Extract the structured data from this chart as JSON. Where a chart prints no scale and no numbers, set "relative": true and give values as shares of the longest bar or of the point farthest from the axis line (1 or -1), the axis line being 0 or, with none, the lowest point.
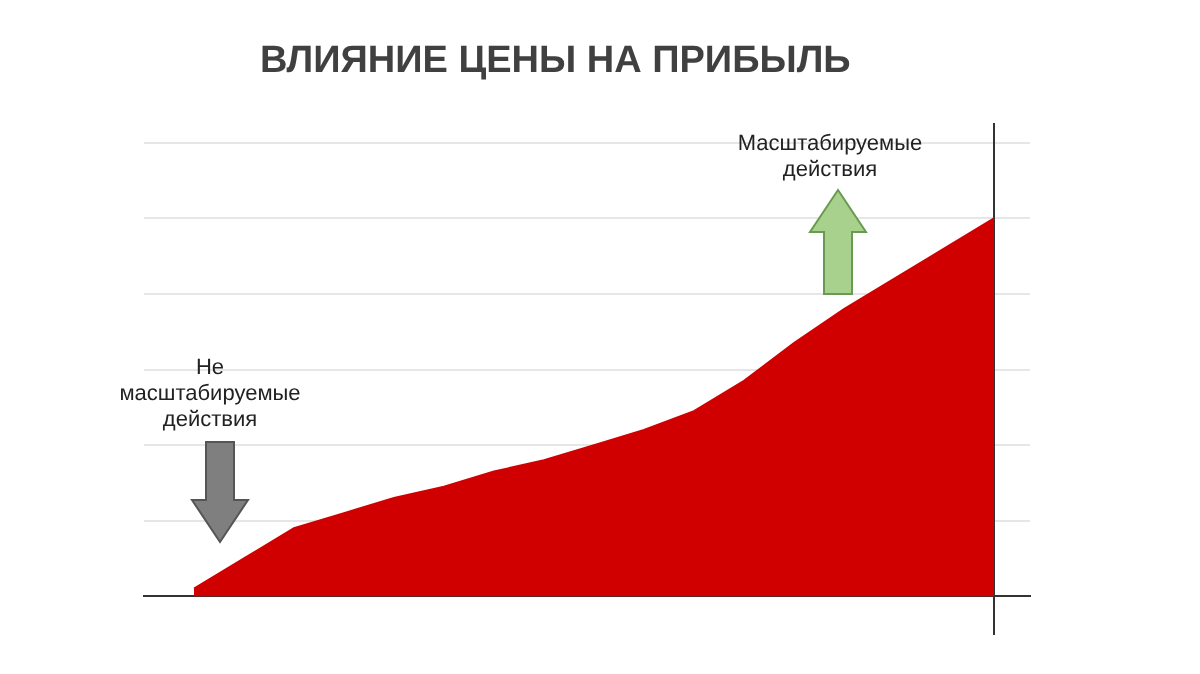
{
  "chart_data": {
    "type": "area",
    "title": "ВЛИЯНИЕ ЦЕНЫ НА ПРИБЫЛЬ",
    "relative": true,
    "grid": "y",
    "legend": false,
    "categories": [
      null,
      null,
      null,
      null,
      null,
      null,
      null,
      null,
      null,
      null,
      null,
      null,
      null,
      null,
      null,
      null,
      null
    ],
    "series": [
      {
        "color": "#d00000",
        "values": [
          0.02,
          0.1,
          0.18,
          0.22,
          0.26,
          0.29,
          0.33,
          0.36,
          0.4,
          0.44,
          0.49,
          0.57,
          0.67,
          0.76,
          0.84,
          0.92,
          1
        ]
      }
    ],
    "annotations": [
      "Не\nмасштабируемые\nдействия",
      "Масштабируемые\nдействия"
    ]
  }
}
